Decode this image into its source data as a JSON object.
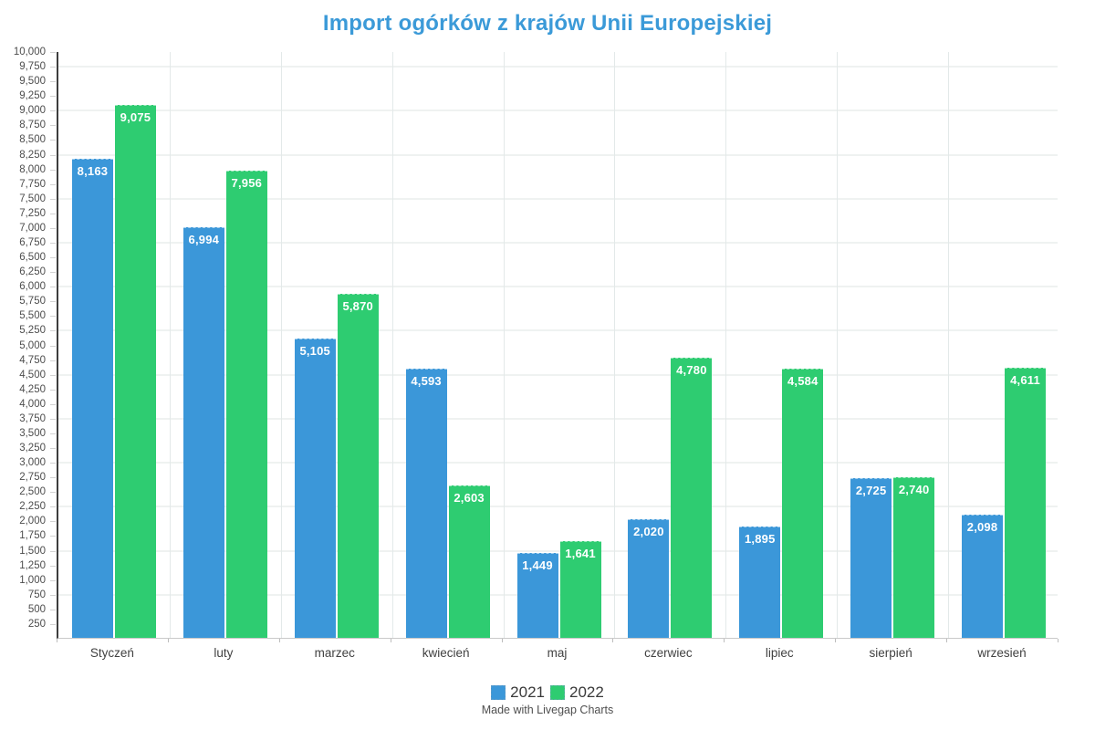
{
  "chart_data": {
    "type": "bar",
    "title": "Import ogórków z krajów Unii Europejskiej",
    "title_color": "#3b9ad8",
    "categories": [
      "Styczeń",
      "luty",
      "marzec",
      "kwiecień",
      "maj",
      "czerwiec",
      "lipiec",
      "sierpień",
      "wrzesień"
    ],
    "series": [
      {
        "name": "2021",
        "color": "#3b97d9",
        "values": [
          8163,
          6994,
          5105,
          4593,
          1449,
          2020,
          1895,
          2725,
          2098
        ]
      },
      {
        "name": "2022",
        "color": "#2ecc71",
        "values": [
          9075,
          7956,
          5870,
          2603,
          1641,
          4780,
          4584,
          2740,
          4611
        ]
      }
    ],
    "ylim": [
      0,
      10000
    ],
    "y_tick_step": 250,
    "y_gridline_step": 750,
    "grid": true,
    "legend_position": "bottom",
    "value_labels_shown": true
  },
  "footer": {
    "credit": "Made with Livegap Charts"
  }
}
